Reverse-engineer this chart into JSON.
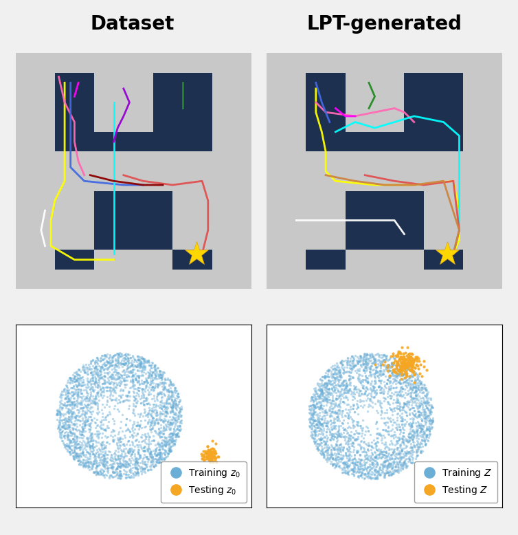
{
  "title_left": "Dataset",
  "title_right": "LPT-generated",
  "title_fontsize": 20,
  "title_fontweight": "bold",
  "bg_color": "#f0f0f0",
  "maze_bg": "#c8c8c8",
  "maze_wall": "#1e3050",
  "blue_color": "#6baed6",
  "orange_color": "#f5a623",
  "scatter_alpha": 0.45,
  "scatter_size": 6,
  "legend_fontsize": 10
}
